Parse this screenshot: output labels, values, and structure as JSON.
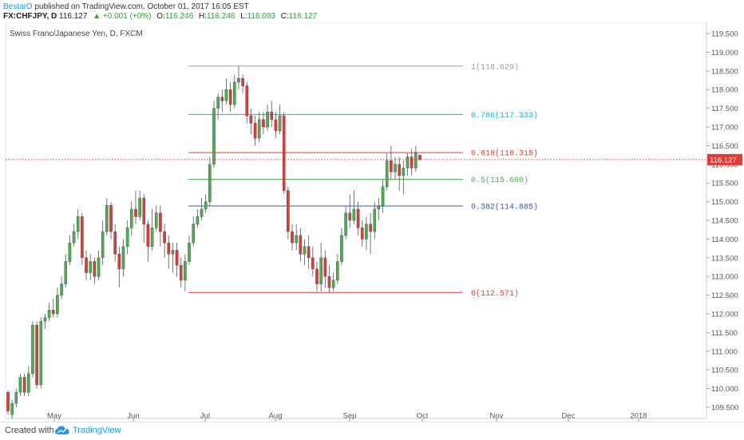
{
  "header": {
    "author": "BestarO",
    "published_text": " published on TradingView.com, October 01, 2017 16:05 EST",
    "symbol_line": "FX:CHFJPY, D",
    "last": "116.127",
    "change": "+0.001 (+0%)",
    "o_label": "O:",
    "o_value": "116.246",
    "h_label": "H:",
    "h_value": "116.246",
    "l_label": "L:",
    "l_value": "116.093",
    "c_label": "C:",
    "c_value": "116.127"
  },
  "footer": {
    "created_with": "Created with",
    "brand": "TradingView"
  },
  "colors": {
    "up": "#4caf50",
    "down": "#e53935",
    "price_line": "#e53935",
    "fib_1": "#9e9e9e",
    "fib_786": "#00bcd4",
    "fib_618": "#e53935",
    "fib_5": "#4caf50",
    "fib_382": "#3f51b5",
    "fib_0": "#e53935"
  },
  "chart_data": {
    "type": "candlestick",
    "title": "Swiss Franc/Japanese Yen, D, FXCM",
    "ylim": [
      109.2,
      119.8
    ],
    "y_ticks": [
      "109.500",
      "110.000",
      "110.500",
      "111.000",
      "111.500",
      "112.000",
      "112.500",
      "113.000",
      "113.500",
      "114.000",
      "114.500",
      "115.000",
      "115.500",
      "116.000",
      "116.500",
      "117.000",
      "117.500",
      "118.000",
      "118.500",
      "119.000",
      "119.500"
    ],
    "x_labels": [
      "May",
      "Jun",
      "Jul",
      "Aug",
      "Sep",
      "Oct",
      "Nov",
      "Dec",
      "2018"
    ],
    "last_price": 116.127,
    "last_price_label": "116.127",
    "fib_levels": [
      {
        "ratio_label": "1(118.629)",
        "price": 118.629,
        "color_key": "fib_1"
      },
      {
        "ratio_label": "0.786(117.333)",
        "price": 117.333,
        "color_key": "fib_786"
      },
      {
        "ratio_label": "0.618(116.315)",
        "price": 116.315,
        "color_key": "fib_618"
      },
      {
        "ratio_label": "0.5(115.600)",
        "price": 115.6,
        "color_key": "fib_5"
      },
      {
        "ratio_label": "0.382(114.885)",
        "price": 114.885,
        "color_key": "fib_382"
      },
      {
        "ratio_label": "0(112.571)",
        "price": 112.571,
        "color_key": "fib_0"
      }
    ],
    "candles": [
      [
        109.9,
        109.4,
        109.95,
        109.3
      ],
      [
        109.3,
        109.6,
        109.7,
        109.2
      ],
      [
        109.6,
        109.9,
        110.0,
        109.5
      ],
      [
        109.9,
        110.3,
        110.4,
        109.8
      ],
      [
        110.3,
        109.9,
        110.4,
        109.8
      ],
      [
        109.9,
        110.4,
        110.6,
        109.8
      ],
      [
        110.4,
        111.7,
        111.8,
        110.3
      ],
      [
        111.7,
        110.1,
        111.8,
        110.0
      ],
      [
        110.1,
        111.8,
        111.9,
        110.0
      ],
      [
        111.8,
        111.9,
        112.0,
        111.6
      ],
      [
        111.9,
        112.1,
        112.3,
        111.8
      ],
      [
        112.1,
        112.0,
        112.4,
        111.9
      ],
      [
        112.0,
        112.5,
        112.7,
        111.9
      ],
      [
        112.5,
        112.8,
        113.0,
        112.4
      ],
      [
        112.8,
        113.4,
        113.6,
        112.7
      ],
      [
        113.4,
        113.9,
        114.1,
        113.3
      ],
      [
        113.9,
        114.2,
        114.4,
        113.8
      ],
      [
        114.2,
        114.6,
        114.8,
        114.0
      ],
      [
        114.6,
        113.5,
        114.7,
        113.3
      ],
      [
        113.5,
        113.1,
        113.7,
        112.9
      ],
      [
        113.1,
        113.4,
        113.6,
        112.9
      ],
      [
        113.4,
        113.0,
        113.5,
        112.8
      ],
      [
        113.0,
        113.5,
        113.7,
        112.9
      ],
      [
        113.5,
        114.2,
        114.5,
        113.3
      ],
      [
        114.2,
        114.9,
        115.1,
        114.1
      ],
      [
        114.9,
        114.2,
        115.0,
        114.0
      ],
      [
        114.2,
        113.6,
        114.4,
        113.4
      ],
      [
        113.6,
        113.2,
        113.8,
        112.7
      ],
      [
        113.2,
        113.8,
        114.0,
        113.0
      ],
      [
        113.8,
        114.3,
        114.5,
        113.6
      ],
      [
        114.3,
        114.8,
        115.0,
        114.1
      ],
      [
        114.8,
        114.6,
        115.3,
        114.4
      ],
      [
        114.6,
        115.1,
        115.3,
        114.5
      ],
      [
        115.1,
        114.4,
        115.2,
        113.9
      ],
      [
        114.4,
        113.8,
        114.5,
        113.4
      ],
      [
        113.8,
        114.3,
        114.8,
        113.7
      ],
      [
        114.3,
        114.7,
        114.9,
        114.2
      ],
      [
        114.7,
        114.2,
        114.9,
        113.8
      ],
      [
        114.2,
        113.9,
        114.4,
        113.5
      ],
      [
        113.9,
        113.6,
        114.1,
        113.2
      ],
      [
        113.6,
        113.7,
        113.9,
        113.1
      ],
      [
        113.7,
        113.3,
        113.9,
        113.0
      ],
      [
        113.3,
        112.9,
        113.5,
        112.7
      ],
      [
        112.9,
        113.4,
        113.6,
        112.6
      ],
      [
        113.4,
        113.9,
        114.1,
        113.3
      ],
      [
        113.9,
        114.4,
        114.6,
        113.8
      ],
      [
        114.4,
        114.6,
        114.8,
        114.3
      ],
      [
        114.6,
        114.8,
        115.1,
        114.5
      ],
      [
        114.8,
        115.0,
        115.2,
        114.7
      ],
      [
        115.0,
        116.0,
        116.2,
        114.9
      ],
      [
        116.0,
        117.5,
        117.7,
        115.9
      ],
      [
        117.5,
        117.8,
        117.9,
        117.2
      ],
      [
        117.8,
        117.7,
        118.0,
        117.4
      ],
      [
        117.7,
        118.0,
        118.3,
        117.6
      ],
      [
        118.0,
        117.6,
        118.2,
        117.4
      ],
      [
        117.6,
        118.2,
        118.4,
        117.5
      ],
      [
        118.2,
        118.3,
        118.629,
        118.0
      ],
      [
        118.3,
        118.1,
        118.4,
        117.9
      ],
      [
        118.1,
        117.3,
        118.2,
        117.1
      ],
      [
        117.3,
        117.1,
        117.5,
        116.8
      ],
      [
        117.1,
        116.7,
        117.3,
        116.5
      ],
      [
        116.7,
        117.2,
        117.4,
        116.6
      ],
      [
        117.2,
        117.0,
        117.4,
        116.8
      ],
      [
        117.0,
        117.4,
        117.6,
        116.9
      ],
      [
        117.4,
        117.2,
        117.7,
        117.0
      ],
      [
        117.2,
        116.9,
        117.4,
        116.7
      ],
      [
        116.9,
        117.3,
        117.6,
        116.8
      ],
      [
        117.3,
        115.3,
        117.4,
        115.2
      ],
      [
        115.3,
        114.2,
        115.4,
        114.0
      ],
      [
        114.2,
        113.9,
        114.4,
        113.7
      ],
      [
        113.9,
        114.1,
        114.4,
        113.7
      ],
      [
        114.1,
        113.6,
        114.3,
        113.4
      ],
      [
        113.6,
        113.8,
        114.0,
        113.3
      ],
      [
        113.8,
        113.5,
        114.1,
        113.2
      ],
      [
        113.5,
        113.2,
        113.8,
        113.0
      ],
      [
        113.2,
        112.8,
        113.4,
        112.6
      ],
      [
        112.8,
        113.5,
        113.9,
        112.6
      ],
      [
        113.5,
        113.0,
        113.7,
        112.7
      ],
      [
        113.0,
        112.7,
        113.3,
        112.571
      ],
      [
        112.7,
        112.9,
        113.1,
        112.6
      ],
      [
        112.9,
        113.4,
        113.6,
        112.8
      ],
      [
        113.4,
        114.1,
        114.3,
        113.3
      ],
      [
        114.1,
        114.7,
        114.9,
        114.0
      ],
      [
        114.7,
        114.5,
        115.2,
        114.3
      ],
      [
        114.5,
        114.8,
        115.3,
        114.4
      ],
      [
        114.8,
        114.3,
        115.0,
        114.1
      ],
      [
        114.3,
        114.0,
        114.5,
        113.8
      ],
      [
        114.0,
        114.4,
        114.6,
        113.7
      ],
      [
        114.4,
        114.2,
        114.7,
        113.6
      ],
      [
        114.2,
        114.8,
        115.0,
        114.0
      ],
      [
        114.8,
        114.9,
        115.1,
        114.5
      ],
      [
        114.9,
        115.4,
        115.6,
        114.7
      ],
      [
        115.4,
        116.1,
        116.3,
        115.3
      ],
      [
        116.1,
        115.8,
        116.5,
        115.6
      ],
      [
        115.8,
        116.0,
        116.2,
        115.6
      ],
      [
        116.0,
        115.7,
        116.2,
        115.3
      ],
      [
        115.7,
        115.9,
        116.1,
        115.2
      ],
      [
        115.9,
        116.2,
        116.3,
        115.7
      ],
      [
        116.2,
        115.9,
        116.4,
        115.7
      ],
      [
        115.9,
        116.3,
        116.5,
        115.8
      ],
      [
        116.246,
        116.127,
        116.246,
        116.093
      ]
    ]
  }
}
